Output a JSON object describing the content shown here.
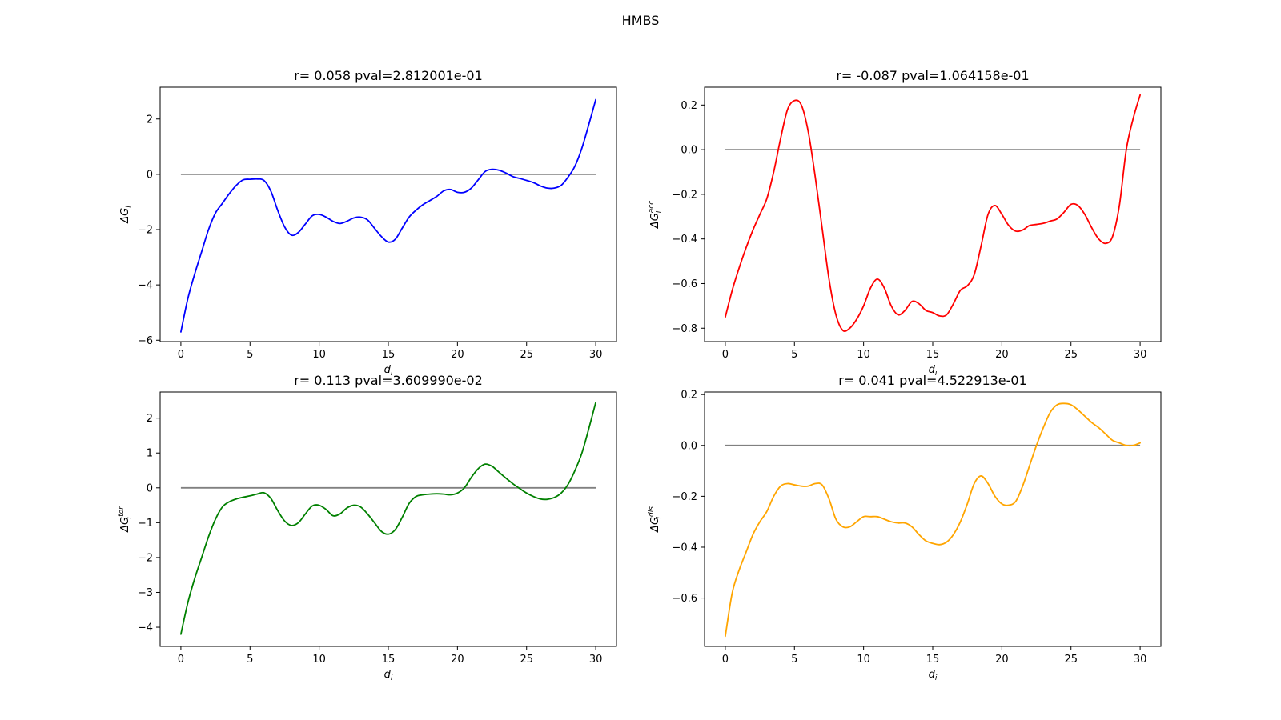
{
  "suptitle": "HMBS",
  "chart_data": [
    {
      "type": "line",
      "title": "r= 0.058 pval=2.812001e-01",
      "xlabel": "d_i",
      "ylabel": "ΔG_i",
      "ylabel_base": "ΔG",
      "ylabel_sub": "i",
      "ylabel_sup": "",
      "xlim": [
        -1.5,
        31.5
      ],
      "ylim": [
        -6.05,
        3.15
      ],
      "xticks": [
        0,
        5,
        10,
        15,
        20,
        25,
        30
      ],
      "yticks": [
        -6,
        -4,
        -2,
        0,
        2
      ],
      "ytick_labels": [
        "−6",
        "−4",
        "−2",
        "0",
        "2"
      ],
      "reference_line": {
        "y": 0,
        "color": "#808080"
      },
      "series": [
        {
          "color": "#0000ff",
          "x": [
            0,
            0.5,
            1,
            1.5,
            2,
            2.5,
            3,
            3.5,
            4,
            4.5,
            5,
            5.5,
            6,
            6.5,
            7,
            7.5,
            8,
            8.5,
            9,
            9.5,
            10,
            10.5,
            11,
            11.5,
            12,
            12.5,
            13,
            13.5,
            14,
            14.5,
            15,
            15.5,
            16,
            16.5,
            17,
            17.5,
            18,
            18.5,
            19,
            19.5,
            20,
            20.5,
            21,
            21.5,
            22,
            22.5,
            23,
            23.5,
            24,
            24.5,
            25,
            25.5,
            26,
            26.5,
            27,
            27.5,
            28,
            28.5,
            29,
            29.5,
            30
          ],
          "y": [
            -5.7,
            -4.5,
            -3.6,
            -2.8,
            -2.0,
            -1.4,
            -1.05,
            -0.7,
            -0.4,
            -0.2,
            -0.18,
            -0.17,
            -0.22,
            -0.6,
            -1.3,
            -1.9,
            -2.2,
            -2.1,
            -1.8,
            -1.5,
            -1.45,
            -1.55,
            -1.7,
            -1.78,
            -1.7,
            -1.58,
            -1.55,
            -1.65,
            -1.95,
            -2.25,
            -2.45,
            -2.35,
            -1.95,
            -1.55,
            -1.3,
            -1.1,
            -0.95,
            -0.8,
            -0.6,
            -0.55,
            -0.65,
            -0.65,
            -0.5,
            -0.2,
            0.1,
            0.18,
            0.15,
            0.05,
            -0.08,
            -0.15,
            -0.22,
            -0.3,
            -0.42,
            -0.5,
            -0.5,
            -0.4,
            -0.1,
            0.3,
            0.95,
            1.8,
            2.7
          ]
        }
      ]
    },
    {
      "type": "line",
      "title": "r= -0.087 pval=1.064158e-01",
      "xlabel": "d_i",
      "ylabel": "ΔG_i^acc",
      "ylabel_base": "ΔG",
      "ylabel_sub": "i",
      "ylabel_sup": "acc",
      "xlim": [
        -1.5,
        31.5
      ],
      "ylim": [
        -0.86,
        0.28
      ],
      "xticks": [
        0,
        5,
        10,
        15,
        20,
        25,
        30
      ],
      "yticks": [
        -0.8,
        -0.6,
        -0.4,
        -0.2,
        0.0,
        0.2
      ],
      "ytick_labels": [
        "−0.8",
        "−0.6",
        "−0.4",
        "−0.2",
        "0.0",
        "0.2"
      ],
      "reference_line": {
        "y": 0,
        "color": "#808080"
      },
      "series": [
        {
          "color": "#ff0000",
          "x": [
            0,
            0.5,
            1,
            1.5,
            2,
            2.5,
            3,
            3.5,
            4,
            4.5,
            5,
            5.5,
            6,
            6.5,
            7,
            7.5,
            8,
            8.5,
            9,
            9.5,
            10,
            10.5,
            11,
            11.5,
            12,
            12.5,
            13,
            13.5,
            14,
            14.5,
            15,
            15.5,
            16,
            16.5,
            17,
            17.5,
            18,
            18.5,
            19,
            19.5,
            20,
            20.5,
            21,
            21.5,
            22,
            22.5,
            23,
            23.5,
            24,
            24.5,
            25,
            25.5,
            26,
            26.5,
            27,
            27.5,
            28,
            28.5,
            29,
            29.5,
            30
          ],
          "y": [
            -0.75,
            -0.63,
            -0.53,
            -0.44,
            -0.36,
            -0.29,
            -0.22,
            -0.1,
            0.05,
            0.18,
            0.22,
            0.2,
            0.08,
            -0.12,
            -0.35,
            -0.58,
            -0.74,
            -0.81,
            -0.8,
            -0.76,
            -0.7,
            -0.62,
            -0.58,
            -0.62,
            -0.7,
            -0.74,
            -0.72,
            -0.68,
            -0.69,
            -0.72,
            -0.73,
            -0.745,
            -0.74,
            -0.69,
            -0.63,
            -0.61,
            -0.56,
            -0.43,
            -0.29,
            -0.25,
            -0.29,
            -0.34,
            -0.365,
            -0.36,
            -0.34,
            -0.335,
            -0.33,
            -0.32,
            -0.31,
            -0.28,
            -0.245,
            -0.25,
            -0.29,
            -0.35,
            -0.4,
            -0.42,
            -0.39,
            -0.25,
            0.0,
            0.14,
            0.245
          ]
        }
      ]
    },
    {
      "type": "line",
      "title": "r= 0.113 pval=3.609990e-02",
      "xlabel": "d_i",
      "ylabel": "ΔG_i^tor",
      "ylabel_base": "ΔG",
      "ylabel_sub": "i",
      "ylabel_sup": "tor",
      "xlim": [
        -1.5,
        31.5
      ],
      "ylim": [
        -4.55,
        2.75
      ],
      "xticks": [
        0,
        5,
        10,
        15,
        20,
        25,
        30
      ],
      "yticks": [
        -4,
        -3,
        -2,
        -1,
        0,
        1,
        2
      ],
      "ytick_labels": [
        "−4",
        "−3",
        "−2",
        "−1",
        "0",
        "1",
        "2"
      ],
      "reference_line": {
        "y": 0,
        "color": "#808080"
      },
      "series": [
        {
          "color": "#008000",
          "x": [
            0,
            0.5,
            1,
            1.5,
            2,
            2.5,
            3,
            3.5,
            4,
            4.5,
            5,
            5.5,
            6,
            6.5,
            7,
            7.5,
            8,
            8.5,
            9,
            9.5,
            10,
            10.5,
            11,
            11.5,
            12,
            12.5,
            13,
            13.5,
            14,
            14.5,
            15,
            15.5,
            16,
            16.5,
            17,
            17.5,
            18,
            18.5,
            19,
            19.5,
            20,
            20.5,
            21,
            21.5,
            22,
            22.5,
            23,
            23.5,
            24,
            24.5,
            25,
            25.5,
            26,
            26.5,
            27,
            27.5,
            28,
            28.5,
            29,
            29.5,
            30
          ],
          "y": [
            -4.2,
            -3.3,
            -2.6,
            -2.0,
            -1.4,
            -0.9,
            -0.55,
            -0.4,
            -0.32,
            -0.27,
            -0.23,
            -0.18,
            -0.14,
            -0.3,
            -0.65,
            -0.95,
            -1.08,
            -1.0,
            -0.75,
            -0.52,
            -0.5,
            -0.62,
            -0.8,
            -0.75,
            -0.58,
            -0.5,
            -0.55,
            -0.75,
            -1.0,
            -1.25,
            -1.33,
            -1.2,
            -0.85,
            -0.45,
            -0.25,
            -0.2,
            -0.18,
            -0.17,
            -0.18,
            -0.2,
            -0.15,
            0.0,
            0.3,
            0.55,
            0.68,
            0.62,
            0.45,
            0.28,
            0.12,
            -0.02,
            -0.15,
            -0.25,
            -0.32,
            -0.33,
            -0.28,
            -0.15,
            0.1,
            0.5,
            1.0,
            1.7,
            2.45
          ]
        }
      ]
    },
    {
      "type": "line",
      "title": "r= 0.041 pval=4.522913e-01",
      "xlabel": "d_i",
      "ylabel": "ΔG_i^dis",
      "ylabel_base": "ΔG",
      "ylabel_sub": "i",
      "ylabel_sup": "dis",
      "xlim": [
        -1.5,
        31.5
      ],
      "ylim": [
        -0.79,
        0.21
      ],
      "xticks": [
        0,
        5,
        10,
        15,
        20,
        25,
        30
      ],
      "yticks": [
        -0.6,
        -0.4,
        -0.2,
        0.0,
        0.2
      ],
      "ytick_labels": [
        "−0.6",
        "−0.4",
        "−0.2",
        "0.0",
        "0.2"
      ],
      "reference_line": {
        "y": 0,
        "color": "#808080"
      },
      "series": [
        {
          "color": "#ffa500",
          "x": [
            0,
            0.5,
            1,
            1.5,
            2,
            2.5,
            3,
            3.5,
            4,
            4.5,
            5,
            5.5,
            6,
            6.5,
            7,
            7.5,
            8,
            8.5,
            9,
            9.5,
            10,
            10.5,
            11,
            11.5,
            12,
            12.5,
            13,
            13.5,
            14,
            14.5,
            15,
            15.5,
            16,
            16.5,
            17,
            17.5,
            18,
            18.5,
            19,
            19.5,
            20,
            20.5,
            21,
            21.5,
            22,
            22.5,
            23,
            23.5,
            24,
            24.5,
            25,
            25.5,
            26,
            26.5,
            27,
            27.5,
            28,
            28.5,
            29,
            29.5,
            30
          ],
          "y": [
            -0.75,
            -0.58,
            -0.49,
            -0.42,
            -0.35,
            -0.3,
            -0.26,
            -0.2,
            -0.16,
            -0.15,
            -0.155,
            -0.16,
            -0.16,
            -0.15,
            -0.155,
            -0.21,
            -0.29,
            -0.32,
            -0.32,
            -0.3,
            -0.28,
            -0.28,
            -0.28,
            -0.29,
            -0.3,
            -0.305,
            -0.305,
            -0.32,
            -0.35,
            -0.375,
            -0.385,
            -0.39,
            -0.38,
            -0.35,
            -0.3,
            -0.23,
            -0.15,
            -0.12,
            -0.15,
            -0.2,
            -0.23,
            -0.235,
            -0.22,
            -0.16,
            -0.08,
            0.0,
            0.07,
            0.13,
            0.16,
            0.165,
            0.16,
            0.14,
            0.115,
            0.09,
            0.07,
            0.045,
            0.02,
            0.01,
            0.0,
            0.0,
            0.01
          ]
        }
      ]
    }
  ]
}
